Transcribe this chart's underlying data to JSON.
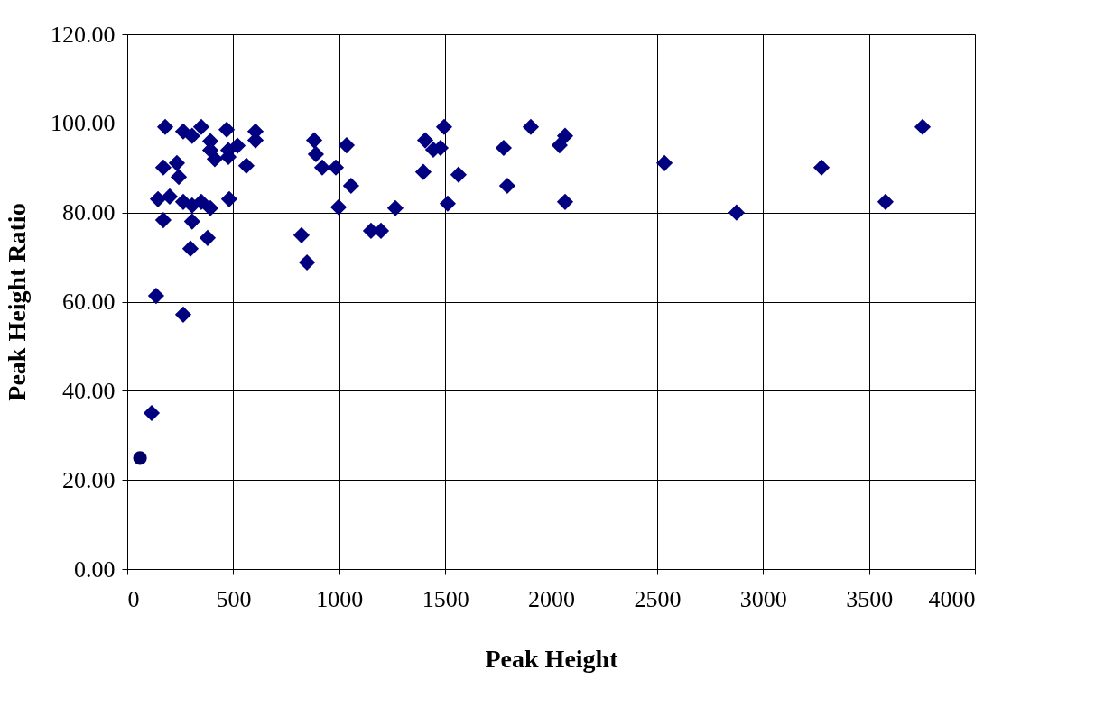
{
  "chart_data": {
    "type": "scatter",
    "xlabel": "Peak Height",
    "ylabel": "Peak Height Ratio",
    "xlim": [
      0,
      4000
    ],
    "xticks": [
      0,
      500,
      1000,
      1500,
      2000,
      2500,
      3000,
      3500,
      4000
    ],
    "ylim": [
      0,
      120
    ],
    "yticks": [
      {
        "value": 0,
        "label": "0.00"
      },
      {
        "value": 20,
        "label": "20.00"
      },
      {
        "value": 40,
        "label": "40.00"
      },
      {
        "value": 60,
        "label": "60.00"
      },
      {
        "value": 80,
        "label": "80.00"
      },
      {
        "value": 100,
        "label": "100.00"
      },
      {
        "value": 120,
        "label": "120.00"
      }
    ],
    "grid": true,
    "series": [
      {
        "color": "#000080",
        "marker": "diamond",
        "x": [
          179,
          264,
          349,
          306,
          170,
          234,
          243,
          145,
          200,
          264,
          170,
          306,
          349,
          392,
          306,
          298,
          379,
          136,
          264,
          115,
          481,
          392,
          413,
          469,
          520,
          477,
          562,
          605,
          605,
          392,
          477,
          882,
          890,
          920,
          984,
          1035,
          1056,
          997,
          848,
          822,
          1150,
          1197,
          1265,
          1397,
          1406,
          1444,
          1478,
          1495,
          1563,
          1512,
          1776,
          1793,
          1904,
          2040,
          2066,
          2066,
          2535,
          2875,
          3276,
          3578,
          3753
        ],
        "values": [
          99.2,
          98.2,
          99.2,
          97.2,
          90.1,
          91.1,
          88,
          83,
          83.6,
          82.4,
          78.3,
          81.6,
          82.4,
          81,
          78,
          71.9,
          74.3,
          61.3,
          57.1,
          35,
          83,
          94,
          92,
          98.6,
          95,
          94,
          90.5,
          98.2,
          96.2,
          96,
          92.5,
          96.2,
          93.1,
          90.1,
          90.1,
          95.1,
          86,
          81.2,
          68.8,
          74.9,
          75.9,
          75.9,
          81,
          89.1,
          96.2,
          94.1,
          94.5,
          99.2,
          88.5,
          82,
          94.5,
          86,
          99.2,
          95.1,
          97.2,
          82.4,
          91.1,
          80,
          90.1,
          82.4,
          99.2
        ]
      },
      {
        "color": "#000066",
        "marker": "circle",
        "x": [
          60
        ],
        "values": [
          24.9
        ]
      }
    ]
  }
}
